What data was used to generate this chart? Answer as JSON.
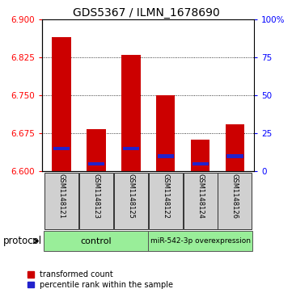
{
  "title": "GDS5367 / ILMN_1678690",
  "samples": [
    "GSM1148121",
    "GSM1148123",
    "GSM1148125",
    "GSM1148122",
    "GSM1148124",
    "GSM1148126"
  ],
  "transformed_count": [
    6.865,
    6.683,
    6.83,
    6.75,
    6.663,
    6.693
  ],
  "percentile_rank": [
    15,
    5,
    15,
    10,
    5,
    10
  ],
  "ylim_left": [
    6.6,
    6.9
  ],
  "ylim_right": [
    0,
    100
  ],
  "yticks_left": [
    6.6,
    6.675,
    6.75,
    6.825,
    6.9
  ],
  "yticks_right": [
    0,
    25,
    50,
    75,
    100
  ],
  "bar_color": "#cc0000",
  "marker_color": "#2222cc",
  "bar_width": 0.55,
  "bar_base": 6.6,
  "background_color": "#ffffff",
  "ctrl_label": "control",
  "mir_label": "miR-542-3p overexpression",
  "group_color": "#99ee99",
  "sample_box_color": "#d0d0d0",
  "title_fontsize": 10,
  "tick_fontsize": 7.5,
  "legend_fontsize": 7,
  "protocol_fontsize": 8.5
}
